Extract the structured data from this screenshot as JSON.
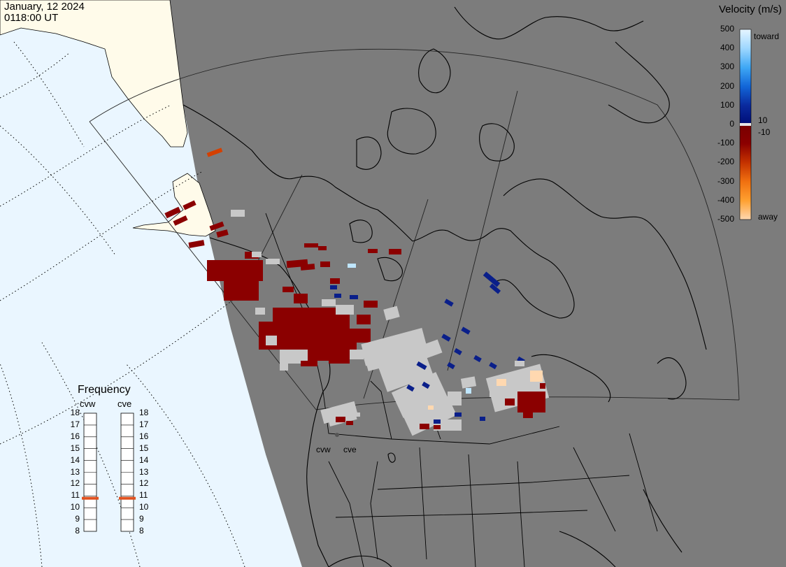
{
  "header": {
    "date": "January, 12 2024",
    "time": "0118:00 UT"
  },
  "colors": {
    "ocean": "#eaf6ff",
    "land_outside": "#fffbea",
    "night": "#7c7c7c",
    "ground_scatter": "#c8c8c8",
    "frequency_marker": "#e0501e"
  },
  "legend": {
    "title": "Velocity (m/s)",
    "ticks": [
      "500",
      "400",
      "300",
      "200",
      "100",
      "0",
      "-100",
      "-200",
      "-300",
      "-400",
      "-500"
    ],
    "inner_ticks": [
      "10",
      "-10"
    ],
    "toward_label": "toward",
    "away_label": "away",
    "stops": [
      {
        "v": 500,
        "color": "#e6f5ff"
      },
      {
        "v": 400,
        "color": "#9ed7ff"
      },
      {
        "v": 300,
        "color": "#3fa8f5"
      },
      {
        "v": 200,
        "color": "#1266d8"
      },
      {
        "v": 100,
        "color": "#0a2a9e"
      },
      {
        "v": 10,
        "color": "#00107a"
      },
      {
        "v": -10,
        "color": "#7a0000"
      },
      {
        "v": -100,
        "color": "#8b0000"
      },
      {
        "v": -200,
        "color": "#c43200"
      },
      {
        "v": -300,
        "color": "#f07010"
      },
      {
        "v": -400,
        "color": "#ffa030"
      },
      {
        "v": -500,
        "color": "#ffd8b0"
      }
    ]
  },
  "frequency": {
    "title": "Frequency",
    "unit_range": [
      8,
      18
    ],
    "ticks": [
      "18",
      "17",
      "16",
      "15",
      "14",
      "13",
      "12",
      "11",
      "10",
      "9",
      "8"
    ],
    "radars": [
      {
        "name": "cvw",
        "frequency_mhz": 10.8
      },
      {
        "name": "cve",
        "frequency_mhz": 10.8
      }
    ]
  },
  "sites": {
    "west": "cvw",
    "east": "cve"
  }
}
